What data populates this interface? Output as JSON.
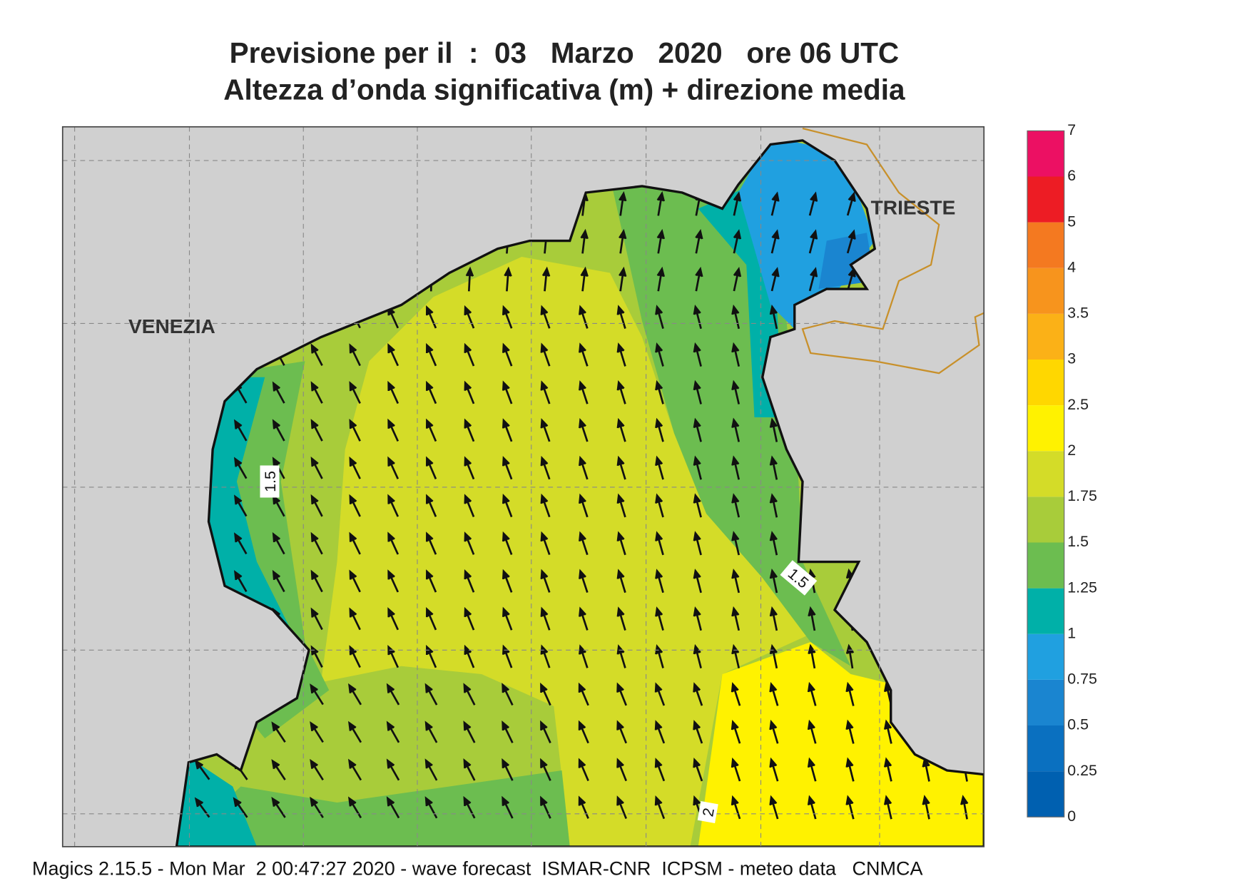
{
  "title": {
    "line1": "Previsione per il  :  03   Marzo   2020   ore 06 UTC",
    "line2": "Altezza d’onda significativa (m) + direzione media"
  },
  "map": {
    "places": [
      "VENEZIA",
      "TRIESTE"
    ],
    "contour_labels": [
      "1.5",
      "1.5",
      "2"
    ]
  },
  "legend": {
    "levels": [
      0,
      0.25,
      0.5,
      0.75,
      1,
      1.25,
      1.5,
      1.75,
      2,
      2.5,
      3,
      3.5,
      4,
      5,
      6,
      7
    ],
    "colors": [
      "#0060b0",
      "#0a70c0",
      "#1a85d0",
      "#20a0e0",
      "#00b0a8",
      "#6cbd50",
      "#a8cc3a",
      "#d4dc28",
      "#fff200",
      "#ffd700",
      "#fbb117",
      "#f7941d",
      "#f47920",
      "#ed1c24",
      "#ec1063"
    ]
  },
  "footer": "Magics 2.15.5 - Mon Mar  2 00:47:27 2020 - wave forecast  ISMAR-CNR  ICPSM - meteo data   CNMCA"
}
